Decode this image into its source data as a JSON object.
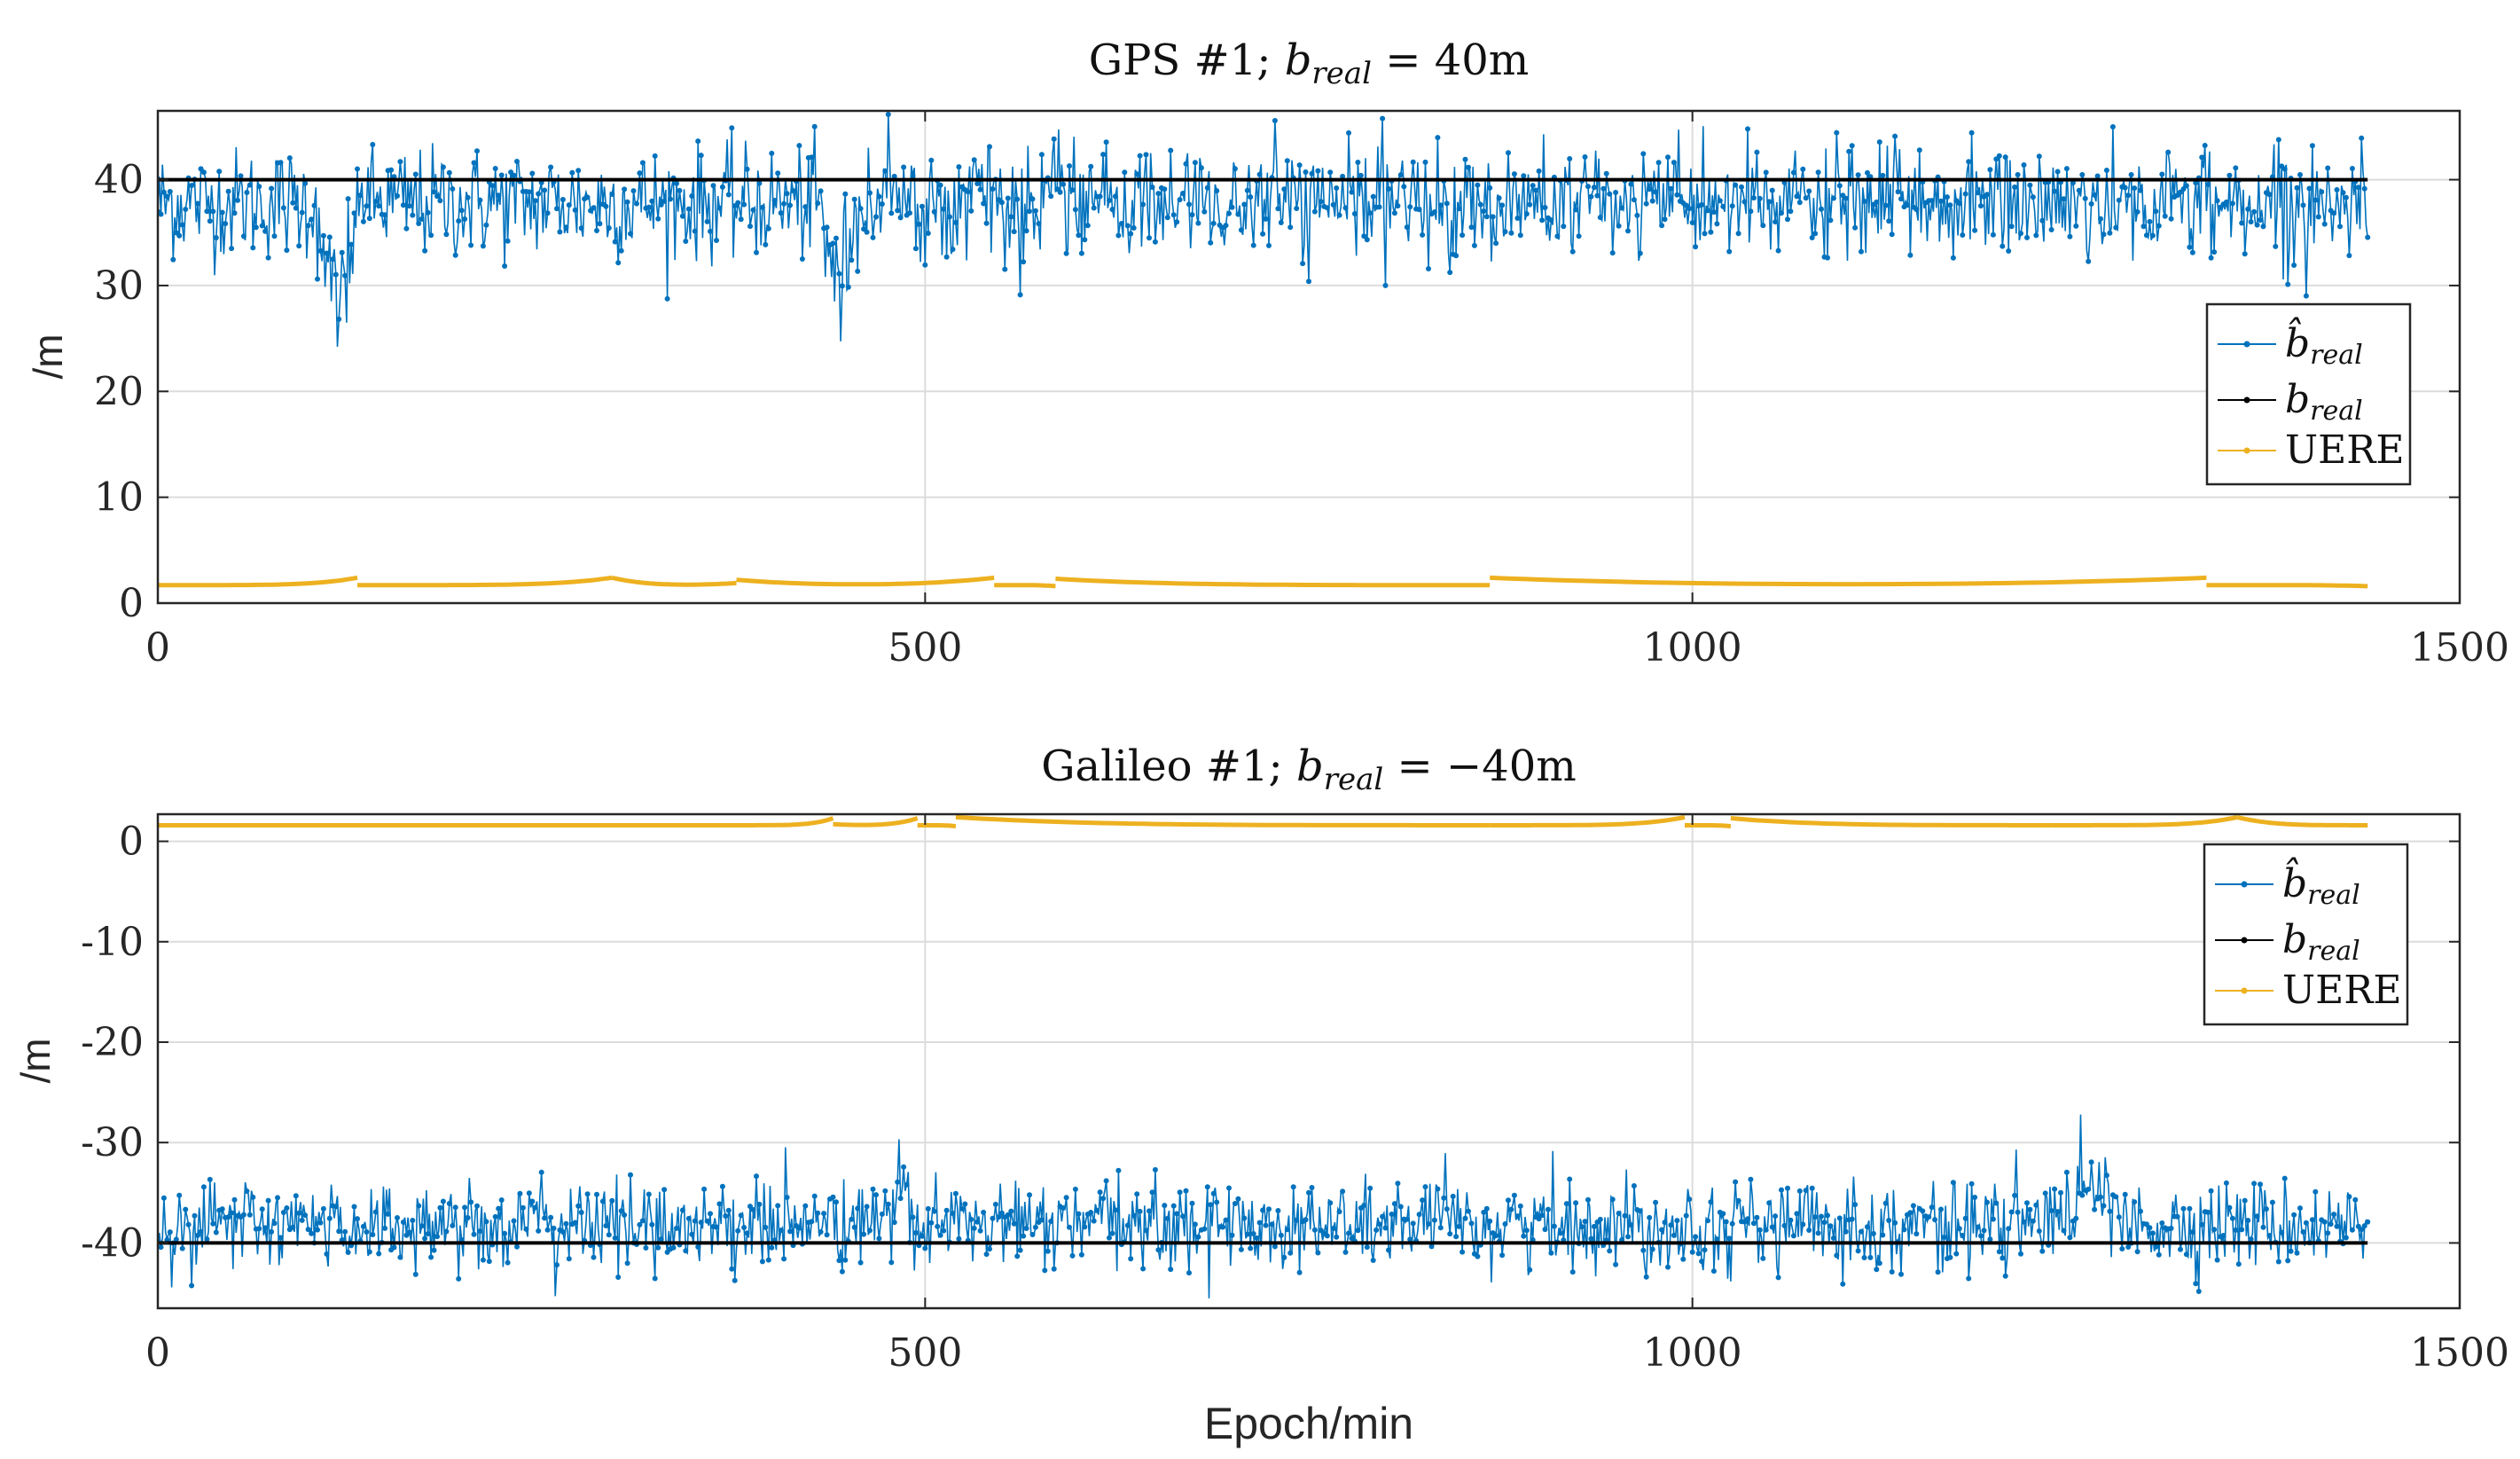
{
  "figure": {
    "xlabel": "Epoch/min"
  },
  "chart_data": [
    {
      "type": "line",
      "title": "GPS #1; b_real = 40m",
      "title_parts": {
        "prefix": "GPS #1; ",
        "var": "b",
        "sub": "real",
        "rel": " = 40m"
      },
      "xlabel": "",
      "ylabel": "/m",
      "xlim": [
        0,
        1500
      ],
      "ylim": [
        0,
        46.5
      ],
      "xticks": [
        0,
        500,
        1000,
        1500
      ],
      "yticks": [
        0,
        10,
        20,
        30,
        40
      ],
      "grid": true,
      "legend": {
        "position": "right",
        "entries": [
          "b̂_real",
          "b_real",
          "UERE"
        ]
      },
      "series": [
        {
          "name": "b̂_real",
          "color": "#0072BD",
          "kind": "noisy-estimate",
          "x_range": [
            0,
            1440
          ],
          "mean": 37.8,
          "std": 2.6,
          "dips": [
            {
              "x": [
                100,
                135
              ],
              "min": 23.0
            },
            {
              "x": [
                430,
                460
              ],
              "min": 26.7
            }
          ],
          "max": 46.3,
          "min": 23.0
        },
        {
          "name": "b_real",
          "color": "#000000",
          "x": [
            0,
            1440
          ],
          "y": [
            40,
            40
          ]
        },
        {
          "name": "UERE",
          "color": "#EDB120",
          "base": 1.7,
          "segments": [
            {
              "x": [
                0,
                130
              ],
              "y_end": 2.4
            },
            {
              "x": [
                130,
                296
              ],
              "y_end": 2.4
            },
            {
              "x": [
                296,
                377
              ],
              "y_start": 2.4,
              "y_end": 1.9
            },
            {
              "x": [
                377,
                545
              ],
              "y_start": 2.2,
              "y_end": 2.4
            },
            {
              "x": [
                545,
                585
              ],
              "y_end": 1.6
            },
            {
              "x": [
                585,
                868
              ],
              "y_start": 2.3,
              "y_end": 1.7
            },
            {
              "x": [
                868,
                1335
              ],
              "y_start": 2.4,
              "y_end": 2.4
            },
            {
              "x": [
                1335,
                1440
              ],
              "y_end": 1.6
            }
          ]
        }
      ]
    },
    {
      "type": "line",
      "title": "Galileo #1; b_real = −40m",
      "title_parts": {
        "prefix": "Galileo #1; ",
        "var": "b",
        "sub": "real",
        "rel": " = −40m"
      },
      "xlabel": "Epoch/min",
      "ylabel": "/m",
      "xlim": [
        0,
        1500
      ],
      "ylim": [
        -46.5,
        2.7
      ],
      "xticks": [
        0,
        500,
        1000,
        1500
      ],
      "yticks": [
        0,
        -10,
        -20,
        -30,
        -40
      ],
      "ytick_labels": [
        "0",
        "-10",
        "-20",
        "-30",
        "-40"
      ],
      "grid": true,
      "legend": {
        "position": "right",
        "entries": [
          "b̂_real",
          "b_real",
          "UERE"
        ]
      },
      "series": [
        {
          "name": "b̂_real",
          "color": "#0072BD",
          "kind": "noisy-estimate",
          "x_range": [
            0,
            1440
          ],
          "mean": -38.2,
          "std": 2.2,
          "bumps": [
            {
              "x": [
                470,
                495
              ],
              "max": -30.0
            },
            {
              "x": [
                1240,
                1280
              ],
              "max": -25.5
            }
          ],
          "max": -25.5,
          "min": -46.5
        },
        {
          "name": "b_real",
          "color": "#000000",
          "x": [
            0,
            1440
          ],
          "y": [
            -40,
            -40
          ]
        },
        {
          "name": "UERE",
          "color": "#EDB120",
          "base": 1.6,
          "segments": [
            {
              "x": [
                0,
                375
              ],
              "y_end": 1.6
            },
            {
              "x": [
                375,
                440
              ],
              "y_end": 2.3
            },
            {
              "x": [
                440,
                495
              ],
              "y_start": 1.7,
              "y_end": 2.3
            },
            {
              "x": [
                495,
                520
              ],
              "y_end": 1.5
            },
            {
              "x": [
                520,
                868
              ],
              "y_start": 2.4,
              "y_end": 1.6
            },
            {
              "x": [
                868,
                995
              ],
              "y_end": 2.4
            },
            {
              "x": [
                995,
                1025
              ],
              "y_end": 1.5
            },
            {
              "x": [
                1025,
                1235
              ],
              "y_start": 2.3,
              "y_end": 1.6
            },
            {
              "x": [
                1235,
                1355
              ],
              "y_end": 2.4
            },
            {
              "x": [
                1355,
                1440
              ],
              "y_start": 2.4,
              "y_end": 1.6
            }
          ]
        }
      ]
    }
  ]
}
